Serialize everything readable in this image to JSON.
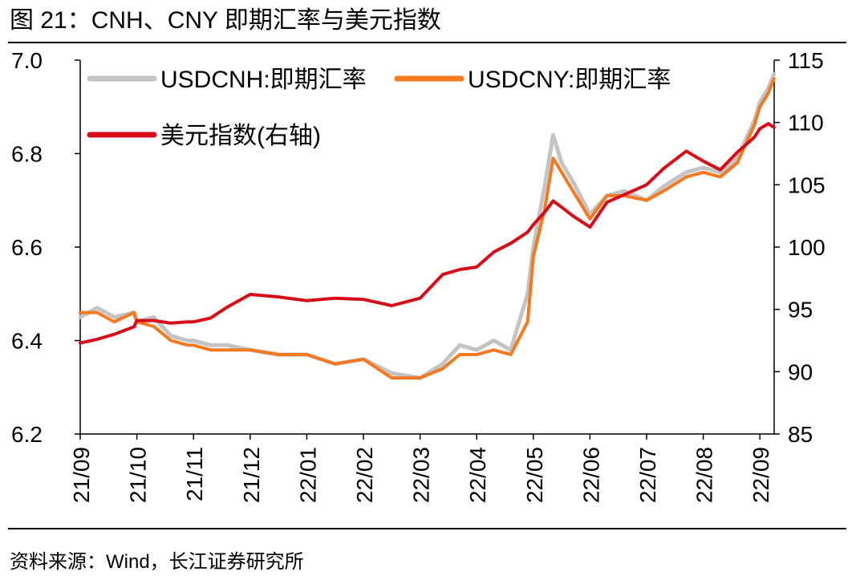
{
  "figure": {
    "title": "图 21：CNH、CNY 即期汇率与美元指数",
    "source": "资料来源：Wind，长江证券研究所"
  },
  "colors": {
    "usdcnh": "#c4c4c4",
    "usdcny": "#f47920",
    "dxy": "#d80c18",
    "axis": "#000000"
  },
  "chart_data": {
    "type": "line",
    "title": "",
    "xlabel": "",
    "ylabel": "",
    "y2label": "",
    "x_ticks": [
      "21/09",
      "21/10",
      "21/11",
      "21/12",
      "22/01",
      "22/02",
      "22/03",
      "22/04",
      "22/05",
      "22/06",
      "22/07",
      "22/08",
      "22/09"
    ],
    "ylim_left": [
      6.2,
      7.0
    ],
    "yticks_left": [
      "6.2",
      "6.4",
      "6.6",
      "6.8",
      "7.0"
    ],
    "ylim_right": [
      85,
      115
    ],
    "yticks_right": [
      "85",
      "90",
      "95",
      "100",
      "105",
      "110",
      "115"
    ],
    "grid": false,
    "legend_position": "top-left",
    "series": [
      {
        "name": "USDCNH:即期汇率",
        "axis": "left",
        "color": "#c4c4c4",
        "x": [
          0,
          0.3,
          0.6,
          0.95,
          1.0,
          1.3,
          1.6,
          1.9,
          2.0,
          2.3,
          2.6,
          3.0,
          3.5,
          4.0,
          4.5,
          5.0,
          5.5,
          6.0,
          6.4,
          6.7,
          7.0,
          7.3,
          7.6,
          7.9,
          8.0,
          8.2,
          8.35,
          8.5,
          8.7,
          9.0,
          9.3,
          9.6,
          10.0,
          10.3,
          10.7,
          11.0,
          11.3,
          11.6,
          11.9,
          12.0,
          12.15,
          12.25
        ],
        "y": [
          6.45,
          6.47,
          6.45,
          6.46,
          6.44,
          6.45,
          6.41,
          6.4,
          6.4,
          6.39,
          6.39,
          6.38,
          6.37,
          6.37,
          6.35,
          6.36,
          6.33,
          6.32,
          6.35,
          6.39,
          6.38,
          6.4,
          6.38,
          6.5,
          6.6,
          6.73,
          6.84,
          6.78,
          6.74,
          6.67,
          6.71,
          6.72,
          6.7,
          6.73,
          6.76,
          6.77,
          6.76,
          6.79,
          6.87,
          6.91,
          6.94,
          6.97
        ]
      },
      {
        "name": "USDCNY:即期汇率",
        "axis": "left",
        "color": "#f47920",
        "x": [
          0,
          0.3,
          0.6,
          0.95,
          1.0,
          1.3,
          1.6,
          1.9,
          2.0,
          2.3,
          2.6,
          3.0,
          3.5,
          4.0,
          4.5,
          5.0,
          5.5,
          6.0,
          6.4,
          6.7,
          7.0,
          7.3,
          7.6,
          7.9,
          8.0,
          8.2,
          8.35,
          8.5,
          8.7,
          9.0,
          9.3,
          9.6,
          10.0,
          10.3,
          10.7,
          11.0,
          11.3,
          11.6,
          11.9,
          12.0,
          12.15,
          12.25
        ],
        "y": [
          6.46,
          6.46,
          6.44,
          6.46,
          6.44,
          6.43,
          6.4,
          6.39,
          6.39,
          6.38,
          6.38,
          6.38,
          6.37,
          6.37,
          6.35,
          6.36,
          6.32,
          6.32,
          6.34,
          6.37,
          6.37,
          6.38,
          6.37,
          6.44,
          6.58,
          6.68,
          6.79,
          6.76,
          6.72,
          6.66,
          6.71,
          6.71,
          6.7,
          6.72,
          6.75,
          6.76,
          6.75,
          6.78,
          6.86,
          6.9,
          6.93,
          6.96
        ]
      },
      {
        "name": "美元指数(右轴)",
        "axis": "right",
        "color": "#d80c18",
        "x": [
          0,
          0.3,
          0.6,
          0.95,
          1.0,
          1.3,
          1.6,
          1.9,
          2.0,
          2.3,
          2.6,
          3.0,
          3.5,
          4.0,
          4.5,
          5.0,
          5.5,
          6.0,
          6.4,
          6.7,
          7.0,
          7.3,
          7.6,
          7.9,
          8.0,
          8.2,
          8.35,
          8.5,
          8.7,
          9.0,
          9.3,
          9.6,
          10.0,
          10.3,
          10.7,
          11.0,
          11.3,
          11.6,
          11.9,
          12.0,
          12.15,
          12.25
        ],
        "y": [
          92.3,
          92.6,
          93.0,
          93.6,
          94.1,
          94.1,
          93.9,
          94.0,
          94.0,
          94.3,
          95.2,
          96.2,
          96.0,
          95.7,
          95.9,
          95.8,
          95.3,
          95.9,
          97.8,
          98.2,
          98.4,
          99.6,
          100.3,
          101.2,
          101.8,
          102.8,
          103.7,
          103.2,
          102.5,
          101.6,
          103.6,
          104.2,
          105.0,
          106.3,
          107.7,
          106.9,
          106.2,
          107.6,
          108.8,
          109.5,
          109.9,
          109.6
        ]
      }
    ]
  }
}
